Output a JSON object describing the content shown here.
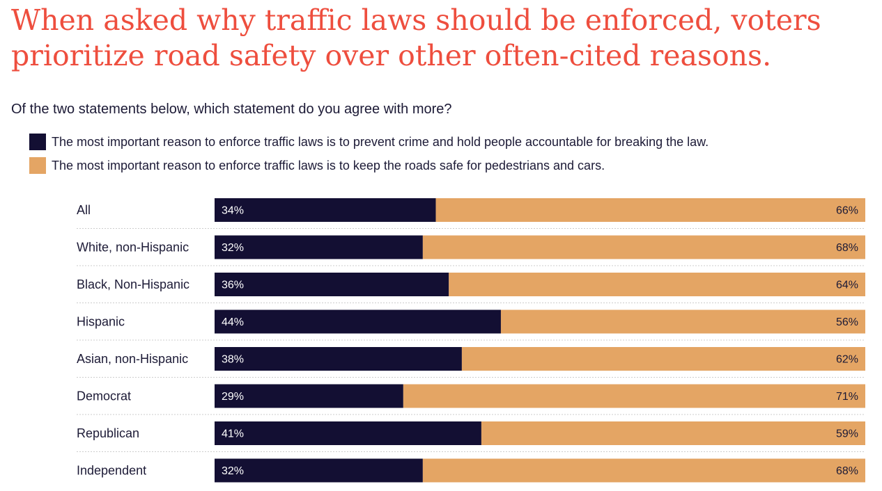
{
  "title": "When asked why traffic laws should be enforced, voters prioritize road safety over other often-cited reasons.",
  "subtitle": "Of the two statements below, which statement do you agree with more?",
  "colors": {
    "dark": "#130f33",
    "light": "#e4a564",
    "title": "#ee4e3e",
    "grid": "#cccccc"
  },
  "chart_data": {
    "type": "bar",
    "stacked": true,
    "orientation": "horizontal",
    "title": "When asked why traffic laws should be enforced, voters prioritize road safety over other often-cited reasons.",
    "subtitle": "Of the two statements below, which statement do you agree with more?",
    "categories": [
      "All",
      "White, non-Hispanic",
      "Black, Non-Hispanic",
      "Hispanic",
      "Asian, non-Hispanic",
      "Democrat",
      "Republican",
      "Independent"
    ],
    "series": [
      {
        "name": "The most important reason to enforce traffic laws is to prevent crime and hold people accountable for breaking the law.",
        "values": [
          34,
          32,
          36,
          44,
          38,
          29,
          41,
          32
        ],
        "labels": [
          "34%",
          "32%",
          "36%",
          "44%",
          "38%",
          "29%",
          "41%",
          "32%"
        ]
      },
      {
        "name": "The most important reason to enforce traffic laws is to keep the roads safe for pedestrians and cars.",
        "values": [
          66,
          68,
          64,
          56,
          62,
          71,
          59,
          68
        ],
        "labels": [
          "66%",
          "68%",
          "64%",
          "56%",
          "62%",
          "71%",
          "59%",
          "68%"
        ]
      }
    ],
    "xlim": [
      0,
      100
    ],
    "legend": "top"
  }
}
